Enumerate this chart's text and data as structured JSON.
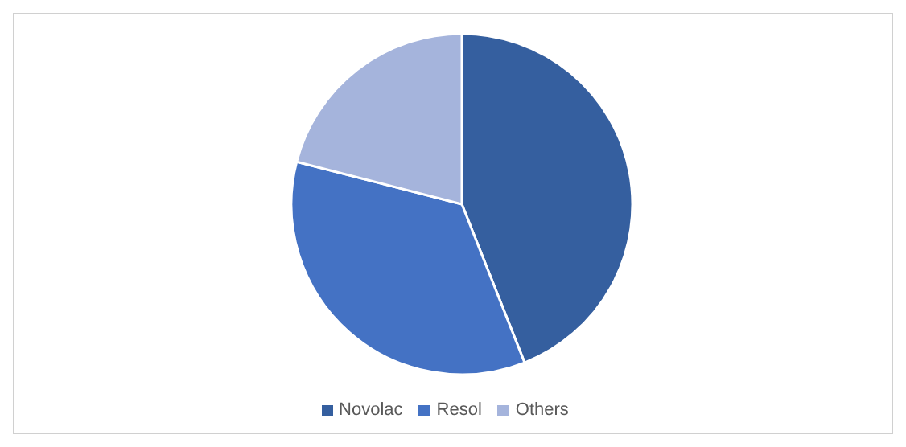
{
  "chart_data": {
    "type": "pie",
    "categories": [
      "Novolac",
      "Resol",
      "Others"
    ],
    "values": [
      44,
      35,
      21
    ],
    "colors": [
      "#355f9f",
      "#4472c4",
      "#a5b4dc"
    ],
    "legend": "bottom"
  }
}
